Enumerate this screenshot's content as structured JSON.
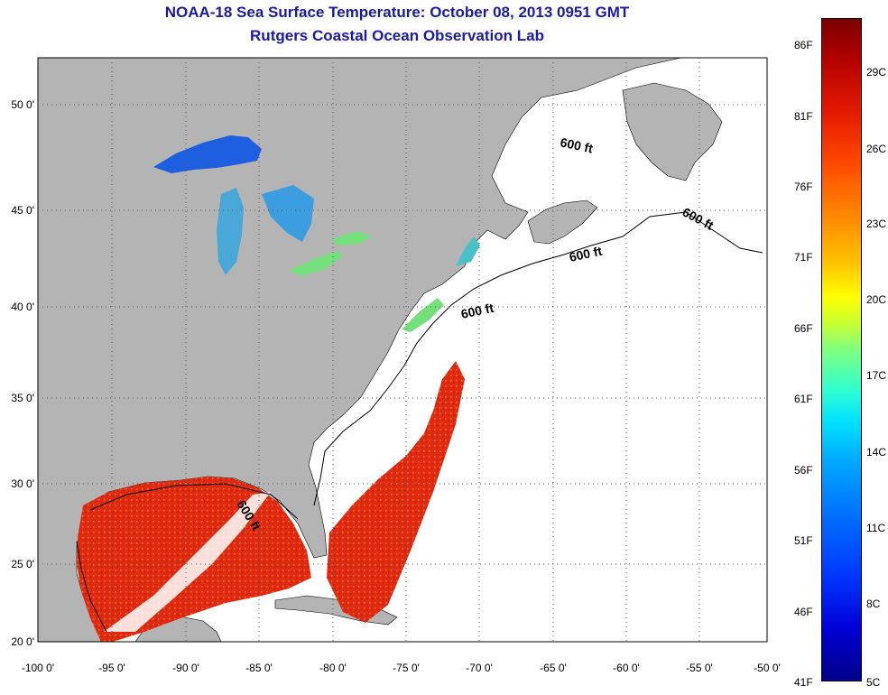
{
  "title": {
    "line1": "NOAA-18 Sea Surface Temperature:  October 08, 2013 0951 GMT",
    "line2": "Rutgers Coastal Ocean Observation Lab"
  },
  "map": {
    "lon_ticks": [
      "-100 0'",
      "-95 0'",
      "-90 0'",
      "-85 0'",
      "-80 0'",
      "-75 0'",
      "-70 0'",
      "-65 0'",
      "-60 0'",
      "-55 0'",
      "-50 0'"
    ],
    "lat_ticks": [
      "50 0'",
      "45 0'",
      "40 0'",
      "35 0'",
      "30 0'",
      "25 0'",
      "20 0'"
    ],
    "contour_labels": [
      "600 ft",
      "600 ft",
      "600 ft",
      "600 ft",
      "600 ft"
    ],
    "colors": {
      "land": "#b4b4b4",
      "water_nodata": "#ffffff",
      "gulf_sst": "#e12a12",
      "lakes_cold": "#1e5fe0",
      "lakes_mild": "#74e07c"
    }
  },
  "colorbar": {
    "fahrenheit": [
      "86F",
      "81F",
      "76F",
      "71F",
      "66F",
      "61F",
      "56F",
      "51F",
      "46F",
      "41F"
    ],
    "celsius": [
      "29C",
      "26C",
      "23C",
      "20C",
      "17C",
      "14C",
      "11C",
      "8C",
      "5C"
    ]
  }
}
